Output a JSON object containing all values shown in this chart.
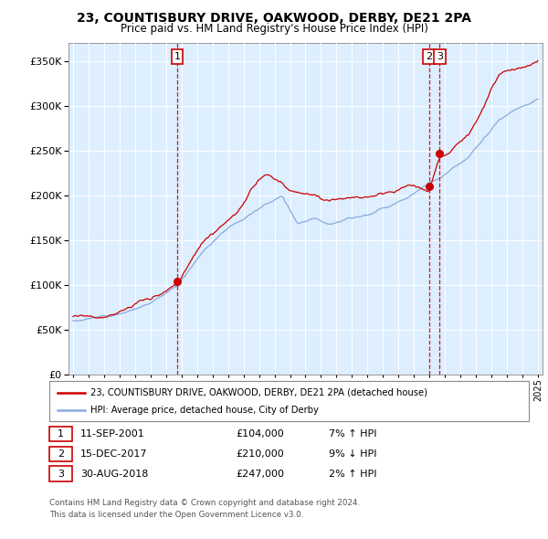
{
  "title": "23, COUNTISBURY DRIVE, OAKWOOD, DERBY, DE21 2PA",
  "subtitle": "Price paid vs. HM Land Registry's House Price Index (HPI)",
  "legend_line1": "23, COUNTISBURY DRIVE, OAKWOOD, DERBY, DE21 2PA (detached house)",
  "legend_line2": "HPI: Average price, detached house, City of Derby",
  "red_line_color": "#cc0000",
  "blue_line_color": "#88aadd",
  "plot_bg": "#ddeeff",
  "grid_color": "#ffffff",
  "sales": [
    {
      "num": "1",
      "date_label": "11-SEP-2001",
      "date_x": 2001.72,
      "price": 104000,
      "pct": "7%",
      "dir": "↑"
    },
    {
      "num": "2",
      "date_label": "15-DEC-2017",
      "date_x": 2017.96,
      "price": 210000,
      "pct": "9%",
      "dir": "↓"
    },
    {
      "num": "3",
      "date_label": "30-AUG-2018",
      "date_x": 2018.66,
      "price": 247000,
      "pct": "2%",
      "dir": "↑"
    }
  ],
  "footer1": "Contains HM Land Registry data © Crown copyright and database right 2024.",
  "footer2": "This data is licensed under the Open Government Licence v3.0.",
  "ylim": [
    0,
    370000
  ],
  "xlim_start": 1994.7,
  "xlim_end": 2025.3,
  "yticks": [
    0,
    50000,
    100000,
    150000,
    200000,
    250000,
    300000,
    350000
  ],
  "xtick_start": 1995,
  "xtick_end": 2025
}
